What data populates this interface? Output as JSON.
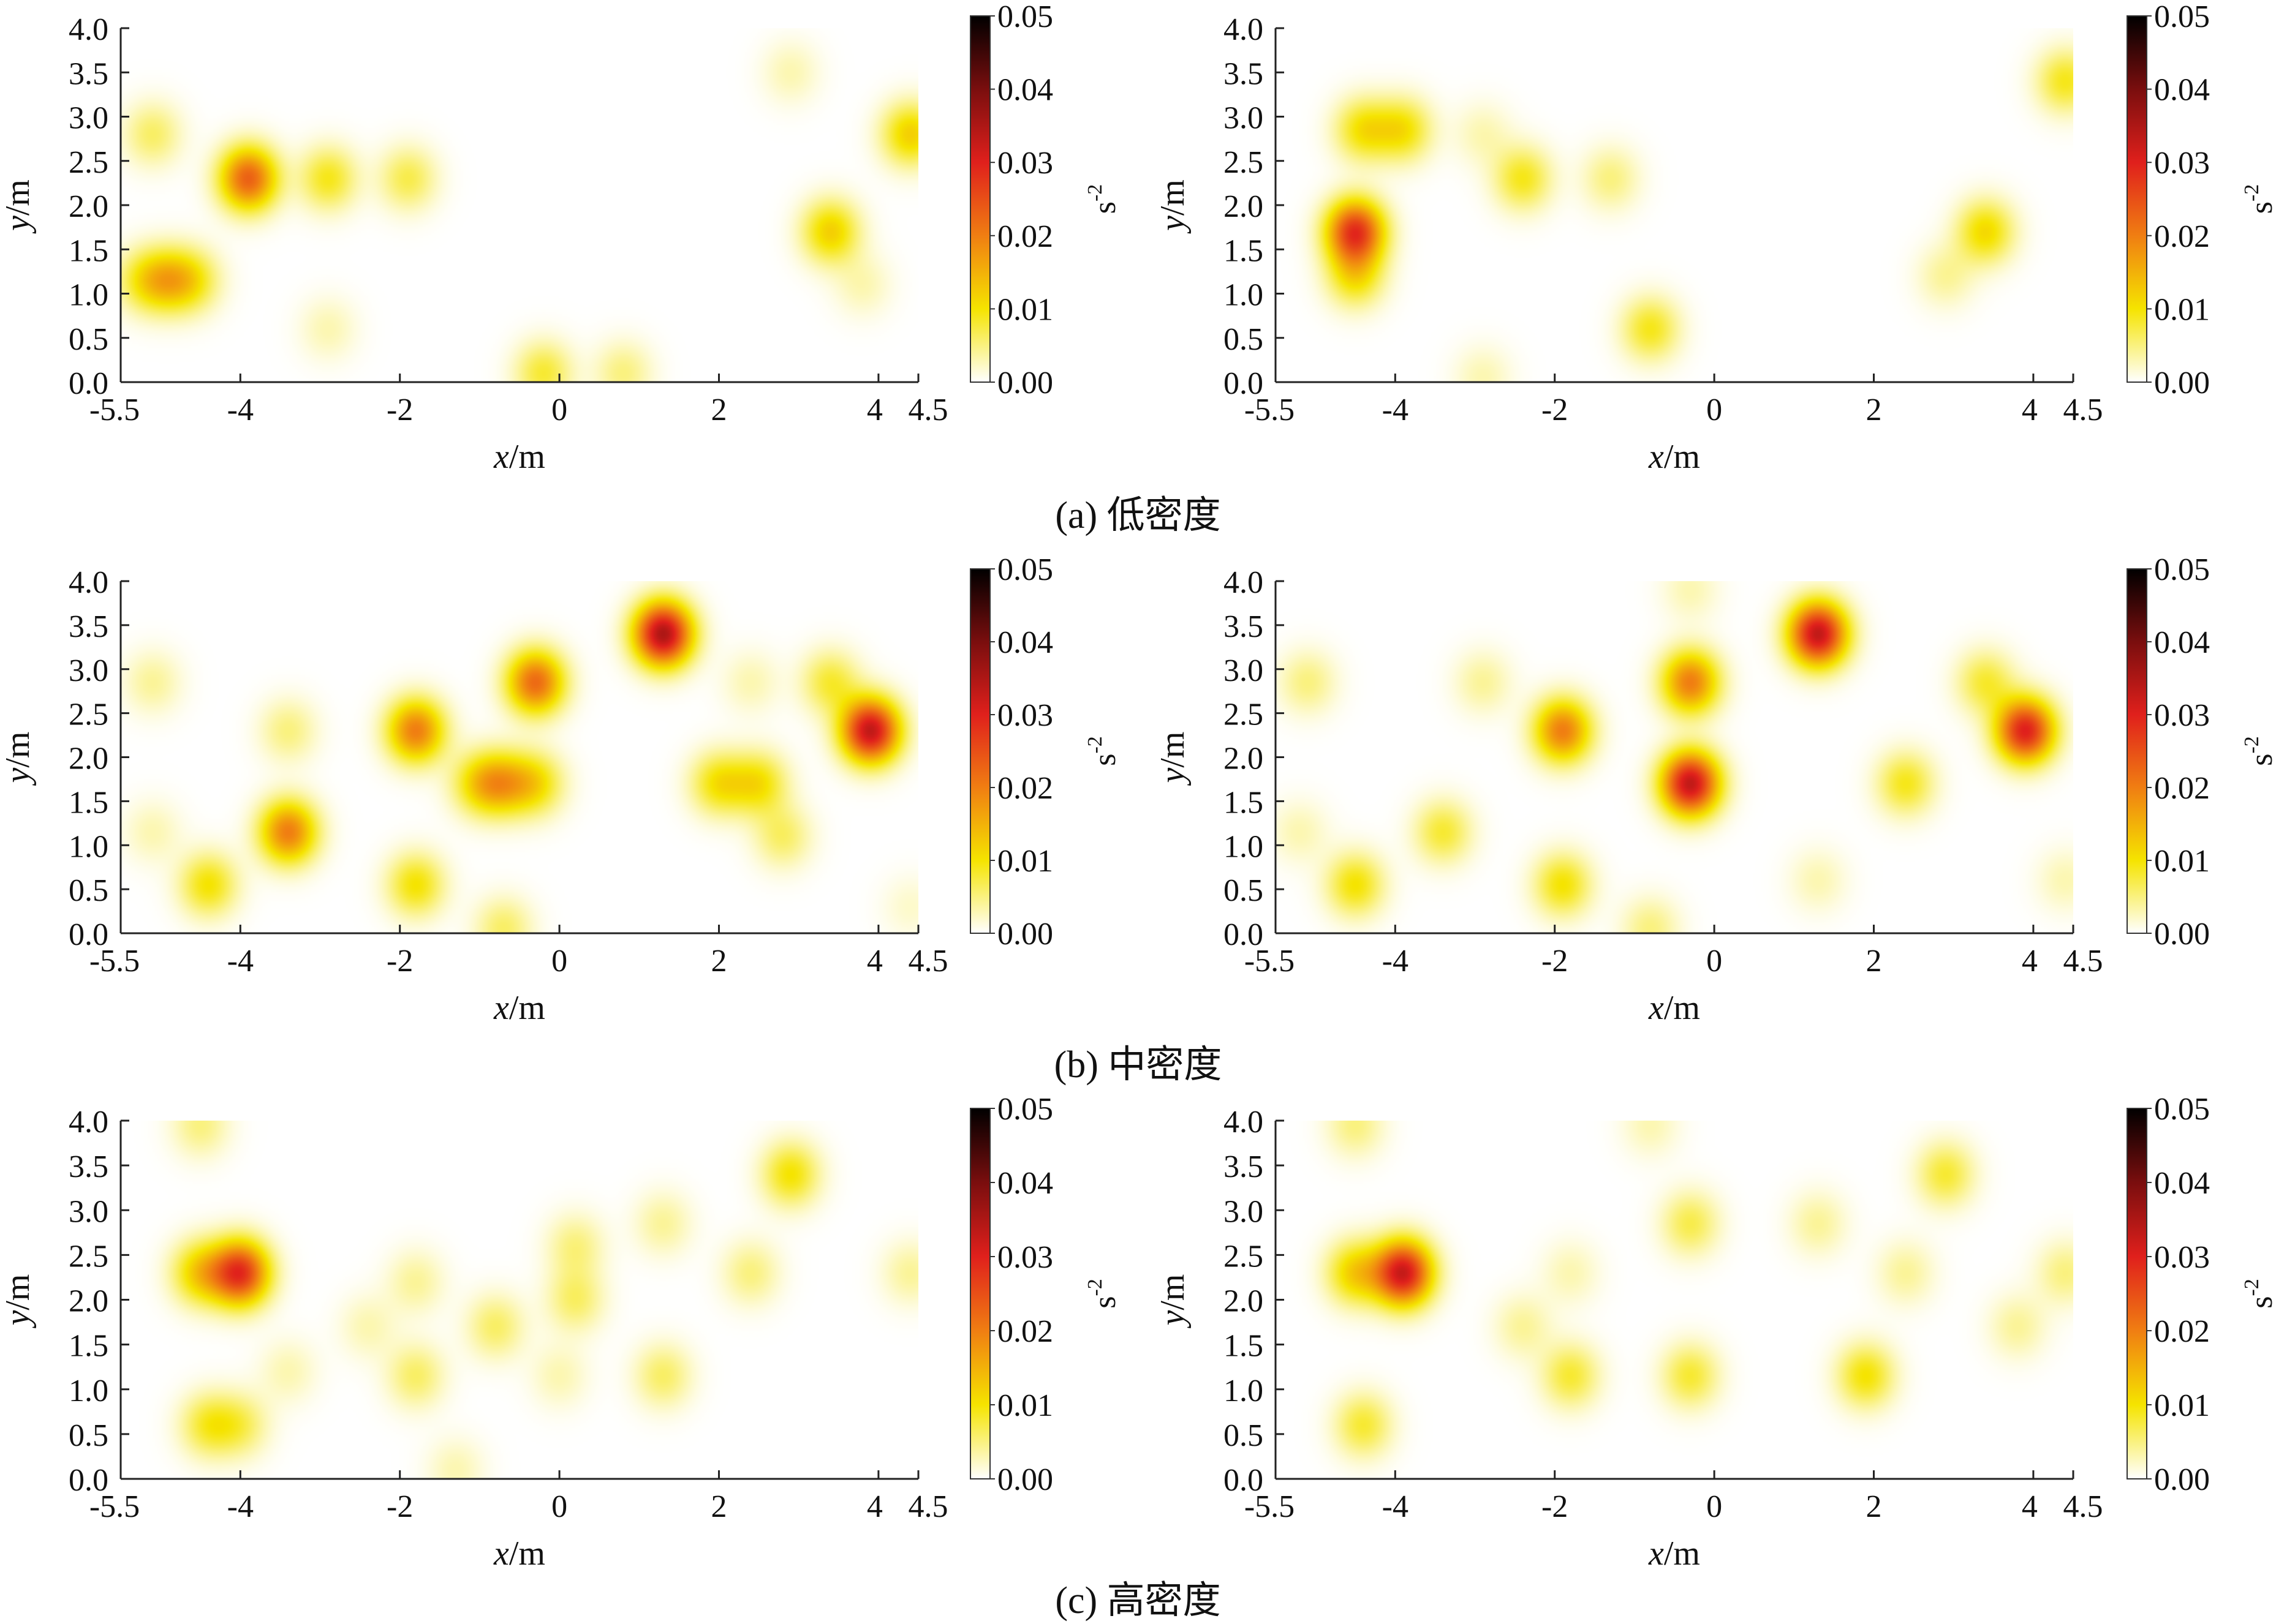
{
  "colorbar": {
    "min": 0,
    "max": 0.05,
    "ticks": [
      "0.00",
      "0.01",
      "0.02",
      "0.03",
      "0.04",
      "0.05"
    ],
    "unit_base": "s",
    "unit_exp": "-2",
    "colors": [
      "#ffffff",
      "#f5e400",
      "#f07e12",
      "#e0201c",
      "#7a0e0e",
      "#000000"
    ]
  },
  "axis_labels": {
    "x_var": "x",
    "y_var": "y",
    "unit": "/m"
  },
  "captions": [
    "(a) 低密度",
    "(b) 中密度",
    "(c) 高密度"
  ],
  "chart_data": [
    {
      "type": "heatmap",
      "row": 0,
      "col": 0,
      "xlim": [
        -5.5,
        4.5
      ],
      "ylim": [
        0,
        4
      ],
      "xticks": [
        "-5.5",
        "-4",
        "-2",
        "0",
        "2",
        "4",
        "4.5"
      ],
      "xtick_values": [
        -5.5,
        -4,
        -2,
        0,
        2,
        4,
        4.5
      ],
      "yticks": [
        "0.0",
        "0.5",
        "1.0",
        "1.5",
        "2.0",
        "2.5",
        "3.0",
        "3.5",
        "4.0"
      ],
      "yticks_values": [
        0,
        0.5,
        1,
        1.5,
        2,
        2.5,
        3,
        3.5,
        4
      ],
      "hotspots": [
        {
          "x": -3.9,
          "y": 2.3,
          "peak": 0.023
        },
        {
          "x": -5.1,
          "y": 2.8,
          "peak": 0.006
        },
        {
          "x": -4.9,
          "y": 1.15,
          "peak": 0.01
        },
        {
          "x": -5.2,
          "y": 1.15,
          "peak": 0.008
        },
        {
          "x": -4.6,
          "y": 1.15,
          "peak": 0.008
        },
        {
          "x": -2.9,
          "y": 2.3,
          "peak": 0.009
        },
        {
          "x": -1.9,
          "y": 2.3,
          "peak": 0.007
        },
        {
          "x": -2.9,
          "y": 0.6,
          "peak": 0.003
        },
        {
          "x": -0.2,
          "y": 0.1,
          "peak": 0.008
        },
        {
          "x": 0.8,
          "y": 0.1,
          "peak": 0.005
        },
        {
          "x": 3.4,
          "y": 1.7,
          "peak": 0.012
        },
        {
          "x": 4.4,
          "y": 2.8,
          "peak": 0.012
        },
        {
          "x": 3.8,
          "y": 1.1,
          "peak": 0.003
        },
        {
          "x": 2.9,
          "y": 3.5,
          "peak": 0.003
        }
      ]
    },
    {
      "type": "heatmap",
      "row": 0,
      "col": 1,
      "xlim": [
        -5.5,
        4.5
      ],
      "ylim": [
        0,
        4
      ],
      "xticks": [
        "-5.5",
        "-4",
        "-2",
        "0",
        "2",
        "4",
        "4.5"
      ],
      "xtick_values": [
        -5.5,
        -4,
        -2,
        0,
        2,
        4,
        4.5
      ],
      "yticks": [
        "0.0",
        "0.5",
        "1.0",
        "1.5",
        "2.0",
        "2.5",
        "3.0",
        "3.5",
        "4.0"
      ],
      "yticks_values": [
        0,
        0.5,
        1,
        1.5,
        2,
        2.5,
        3,
        3.5,
        4
      ],
      "hotspots": [
        {
          "x": -4.5,
          "y": 1.7,
          "peak": 0.028
        },
        {
          "x": -4.5,
          "y": 1.2,
          "peak": 0.01
        },
        {
          "x": -4.4,
          "y": 2.85,
          "peak": 0.01
        },
        {
          "x": -3.9,
          "y": 2.85,
          "peak": 0.01
        },
        {
          "x": -2.4,
          "y": 2.3,
          "peak": 0.009
        },
        {
          "x": -1.3,
          "y": 2.3,
          "peak": 0.005
        },
        {
          "x": -0.8,
          "y": 0.6,
          "peak": 0.009
        },
        {
          "x": 3.4,
          "y": 1.7,
          "peak": 0.011
        },
        {
          "x": 2.9,
          "y": 1.2,
          "peak": 0.004
        },
        {
          "x": 4.4,
          "y": 3.4,
          "peak": 0.009
        },
        {
          "x": -2.9,
          "y": 2.8,
          "peak": 0.003
        },
        {
          "x": -2.9,
          "y": 0.05,
          "peak": 0.003
        }
      ]
    },
    {
      "type": "heatmap",
      "row": 1,
      "col": 0,
      "xlim": [
        -5.5,
        4.5
      ],
      "ylim": [
        0,
        4
      ],
      "xticks": [
        "-5.5",
        "-4",
        "-2",
        "0",
        "2",
        "4",
        "4.5"
      ],
      "xtick_values": [
        -5.5,
        -4,
        -2,
        0,
        2,
        4,
        4.5
      ],
      "yticks": [
        "0.0",
        "0.5",
        "1.0",
        "1.5",
        "2.0",
        "2.5",
        "3.0",
        "3.5",
        "4.0"
      ],
      "yticks_values": [
        0,
        0.5,
        1,
        1.5,
        2,
        2.5,
        3,
        3.5,
        4
      ],
      "hotspots": [
        {
          "x": 1.3,
          "y": 3.4,
          "peak": 0.035
        },
        {
          "x": 3.9,
          "y": 2.3,
          "peak": 0.033
        },
        {
          "x": -0.3,
          "y": 2.85,
          "peak": 0.022
        },
        {
          "x": -1.8,
          "y": 2.3,
          "peak": 0.02
        },
        {
          "x": -3.4,
          "y": 1.15,
          "peak": 0.02
        },
        {
          "x": -0.7,
          "y": 1.7,
          "peak": 0.012
        },
        {
          "x": -0.3,
          "y": 1.7,
          "peak": 0.01
        },
        {
          "x": -1.0,
          "y": 1.7,
          "peak": 0.01
        },
        {
          "x": 2.0,
          "y": 1.7,
          "peak": 0.01
        },
        {
          "x": 2.5,
          "y": 1.7,
          "peak": 0.01
        },
        {
          "x": 2.8,
          "y": 1.1,
          "peak": 0.006
        },
        {
          "x": -4.4,
          "y": 0.55,
          "peak": 0.01
        },
        {
          "x": -1.8,
          "y": 0.55,
          "peak": 0.01
        },
        {
          "x": -0.7,
          "y": 0.05,
          "peak": 0.006
        },
        {
          "x": 3.4,
          "y": 2.85,
          "peak": 0.008
        },
        {
          "x": -5.1,
          "y": 2.85,
          "peak": 0.004
        },
        {
          "x": -3.4,
          "y": 2.3,
          "peak": 0.005
        },
        {
          "x": -5.1,
          "y": 1.15,
          "peak": 0.003
        },
        {
          "x": 2.4,
          "y": 2.85,
          "peak": 0.003
        },
        {
          "x": 4.4,
          "y": 0.3,
          "peak": 0.002
        }
      ]
    },
    {
      "type": "heatmap",
      "row": 1,
      "col": 1,
      "xlim": [
        -5.5,
        4.5
      ],
      "ylim": [
        0,
        4
      ],
      "xticks": [
        "-5.5",
        "-4",
        "-2",
        "0",
        "2",
        "4",
        "4.5"
      ],
      "xtick_values": [
        -5.5,
        -4,
        -2,
        0,
        2,
        4,
        4.5
      ],
      "yticks": [
        "0.0",
        "0.5",
        "1.0",
        "1.5",
        "2.0",
        "2.5",
        "3.0",
        "3.5",
        "4.0"
      ],
      "yticks_values": [
        0,
        0.5,
        1,
        1.5,
        2,
        2.5,
        3,
        3.5,
        4
      ],
      "hotspots": [
        {
          "x": 1.3,
          "y": 3.4,
          "peak": 0.033
        },
        {
          "x": -0.3,
          "y": 1.7,
          "peak": 0.033
        },
        {
          "x": 3.9,
          "y": 2.3,
          "peak": 0.03
        },
        {
          "x": -0.3,
          "y": 2.85,
          "peak": 0.02
        },
        {
          "x": -1.9,
          "y": 2.3,
          "peak": 0.02
        },
        {
          "x": 2.4,
          "y": 1.7,
          "peak": 0.009
        },
        {
          "x": -3.4,
          "y": 1.15,
          "peak": 0.008
        },
        {
          "x": -4.5,
          "y": 0.55,
          "peak": 0.01
        },
        {
          "x": -1.9,
          "y": 0.55,
          "peak": 0.01
        },
        {
          "x": 3.4,
          "y": 2.85,
          "peak": 0.008
        },
        {
          "x": -5.1,
          "y": 2.85,
          "peak": 0.005
        },
        {
          "x": -2.9,
          "y": 2.85,
          "peak": 0.004
        },
        {
          "x": -0.8,
          "y": 0.05,
          "peak": 0.005
        },
        {
          "x": 1.3,
          "y": 0.6,
          "peak": 0.003
        },
        {
          "x": -5.2,
          "y": 1.15,
          "peak": 0.003
        },
        {
          "x": 4.4,
          "y": 0.6,
          "peak": 0.003
        },
        {
          "x": -0.3,
          "y": 3.9,
          "peak": 0.003
        }
      ]
    },
    {
      "type": "heatmap",
      "row": 2,
      "col": 0,
      "xlim": [
        -5.5,
        4.5
      ],
      "ylim": [
        0,
        4
      ],
      "xticks": [
        "-5.5",
        "-4",
        "-2",
        "0",
        "2",
        "4",
        "4.5"
      ],
      "xtick_values": [
        -5.5,
        -4,
        -2,
        0,
        2,
        4,
        4.5
      ],
      "yticks": [
        "0.0",
        "0.5",
        "1.0",
        "1.5",
        "2.0",
        "2.5",
        "3.0",
        "3.5",
        "4.0"
      ],
      "yticks_values": [
        0,
        0.5,
        1,
        1.5,
        2,
        2.5,
        3,
        3.5,
        4
      ],
      "hotspots": [
        {
          "x": -4.0,
          "y": 2.3,
          "peak": 0.028
        },
        {
          "x": -4.5,
          "y": 2.3,
          "peak": 0.012
        },
        {
          "x": -4.4,
          "y": 0.6,
          "peak": 0.008
        },
        {
          "x": -4.0,
          "y": 0.6,
          "peak": 0.006
        },
        {
          "x": -4.5,
          "y": 3.95,
          "peak": 0.005
        },
        {
          "x": 2.9,
          "y": 3.4,
          "peak": 0.01
        },
        {
          "x": 0.2,
          "y": 2.0,
          "peak": 0.006
        },
        {
          "x": 0.2,
          "y": 2.6,
          "peak": 0.005
        },
        {
          "x": -0.8,
          "y": 1.7,
          "peak": 0.006
        },
        {
          "x": -1.8,
          "y": 1.15,
          "peak": 0.006
        },
        {
          "x": 1.3,
          "y": 1.15,
          "peak": 0.006
        },
        {
          "x": -1.8,
          "y": 2.2,
          "peak": 0.004
        },
        {
          "x": 0.0,
          "y": 1.15,
          "peak": 0.003
        },
        {
          "x": 1.3,
          "y": 2.85,
          "peak": 0.004
        },
        {
          "x": 2.4,
          "y": 2.3,
          "peak": 0.005
        },
        {
          "x": 4.4,
          "y": 2.3,
          "peak": 0.004
        },
        {
          "x": -2.4,
          "y": 1.7,
          "peak": 0.003
        },
        {
          "x": -1.3,
          "y": 0.1,
          "peak": 0.003
        },
        {
          "x": -3.4,
          "y": 1.2,
          "peak": 0.003
        }
      ]
    },
    {
      "type": "heatmap",
      "row": 2,
      "col": 1,
      "xlim": [
        -5.5,
        4.5
      ],
      "ylim": [
        0,
        4
      ],
      "xticks": [
        "-5.5",
        "-4",
        "-2",
        "0",
        "2",
        "4",
        "4.5"
      ],
      "xtick_values": [
        -5.5,
        -4,
        -2,
        0,
        2,
        4,
        4.5
      ],
      "yticks": [
        "0.0",
        "0.5",
        "1.0",
        "1.5",
        "2.0",
        "2.5",
        "3.0",
        "3.5",
        "4.0"
      ],
      "yticks_values": [
        0,
        0.5,
        1,
        1.5,
        2,
        2.5,
        3,
        3.5,
        4
      ],
      "hotspots": [
        {
          "x": -3.9,
          "y": 2.3,
          "peak": 0.032
        },
        {
          "x": -4.5,
          "y": 2.3,
          "peak": 0.012
        },
        {
          "x": -4.4,
          "y": 0.6,
          "peak": 0.008
        },
        {
          "x": -4.5,
          "y": 3.95,
          "peak": 0.005
        },
        {
          "x": 2.9,
          "y": 3.4,
          "peak": 0.008
        },
        {
          "x": -0.3,
          "y": 2.85,
          "peak": 0.007
        },
        {
          "x": -0.3,
          "y": 1.15,
          "peak": 0.008
        },
        {
          "x": -1.8,
          "y": 1.15,
          "peak": 0.008
        },
        {
          "x": 1.9,
          "y": 1.15,
          "peak": 0.01
        },
        {
          "x": 1.3,
          "y": 2.85,
          "peak": 0.004
        },
        {
          "x": 2.4,
          "y": 2.3,
          "peak": 0.004
        },
        {
          "x": 4.4,
          "y": 2.3,
          "peak": 0.005
        },
        {
          "x": 3.8,
          "y": 1.7,
          "peak": 0.004
        },
        {
          "x": -2.4,
          "y": 1.7,
          "peak": 0.004
        },
        {
          "x": -1.8,
          "y": 2.3,
          "peak": 0.003
        },
        {
          "x": -0.8,
          "y": 3.95,
          "peak": 0.003
        }
      ]
    }
  ]
}
